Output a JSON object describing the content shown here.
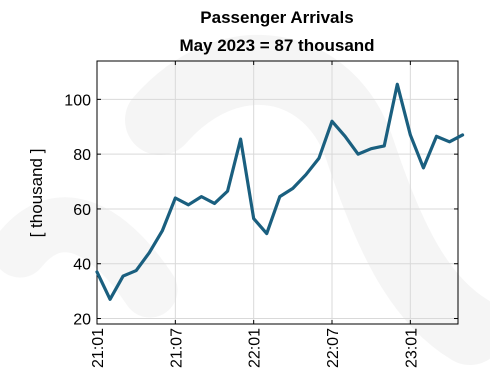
{
  "chart_data": {
    "type": "line",
    "title": "Passenger Arrivals",
    "subtitle": "May 2023 = 87 thousand",
    "xlabel": "",
    "ylabel": "[ thousand ]",
    "x": [
      "21:01",
      "21:02",
      "21:03",
      "21:04",
      "21:05",
      "21:06",
      "21:07",
      "21:08",
      "21:09",
      "21:10",
      "21:11",
      "21:12",
      "22:01",
      "22:02",
      "22:03",
      "22:04",
      "22:05",
      "22:06",
      "22:07",
      "22:08",
      "22:09",
      "22:10",
      "22:11",
      "22:12",
      "23:01",
      "23:02",
      "23:03",
      "23:04",
      "23:05"
    ],
    "x_ticks": [
      "21:01",
      "21:07",
      "22:01",
      "22:07",
      "23:01"
    ],
    "series": [
      {
        "values": [
          37,
          27,
          35.5,
          37.5,
          44,
          52,
          64,
          61.5,
          64.5,
          62,
          66.5,
          85.5,
          56.5,
          51,
          64.5,
          67.5,
          72.5,
          78.5,
          92,
          86.5,
          80,
          82,
          83,
          105.5,
          87,
          75,
          86.5,
          84.5,
          87
        ],
        "color": "#1a5f7f"
      }
    ],
    "ylim": [
      18,
      114
    ],
    "y_ticks": [
      20,
      40,
      60,
      80,
      100
    ],
    "grid": true,
    "legend": "none"
  }
}
